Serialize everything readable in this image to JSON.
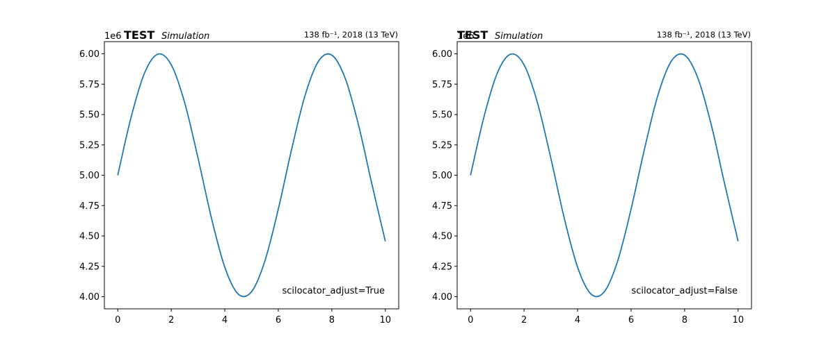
{
  "figure": {
    "background": "#ffffff"
  },
  "chart_data": [
    {
      "type": "line",
      "title": "",
      "header": {
        "label": "TEST",
        "sublabel": "Simulation",
        "lumi": "138 fb⁻¹, 2018 (13 TeV)"
      },
      "xlabel": "",
      "ylabel": "",
      "offset_text": "1e6",
      "xlim": [
        -0.5,
        10.5
      ],
      "ylim": [
        3900000,
        6100000
      ],
      "xticks": [
        0,
        2,
        4,
        6,
        8,
        10
      ],
      "xtick_labels": [
        "0",
        "2",
        "4",
        "6",
        "8",
        "10"
      ],
      "yticks": [
        4000000,
        4250000,
        4500000,
        4750000,
        5000000,
        5250000,
        5500000,
        5750000,
        6000000
      ],
      "ytick_labels": [
        "4.00",
        "4.25",
        "4.50",
        "4.75",
        "5.00",
        "5.25",
        "5.50",
        "5.75",
        "6.00"
      ],
      "grid": false,
      "annotation": "scilocator_adjust=True",
      "series": [
        {
          "color": "#1f77b4",
          "x": [
            0,
            0.5,
            1.0,
            1.5,
            2.0,
            2.5,
            3.0,
            3.5,
            4.0,
            4.5,
            5.0,
            5.5,
            6.0,
            6.5,
            7.0,
            7.5,
            8.0,
            8.5,
            9.0,
            9.5,
            10.0
          ],
          "y": [
            5000000,
            5479000,
            5841000,
            5997000,
            5909000,
            5598000,
            5141000,
            4649000,
            4243000,
            4022000,
            4041000,
            4295000,
            4721000,
            5215000,
            5657000,
            5938000,
            5989000,
            5798000,
            5412000,
            4925000,
            4456000
          ]
        }
      ]
    },
    {
      "type": "line",
      "title": "",
      "header": {
        "label": "TEST",
        "sublabel": "Simulation",
        "lumi": "138 fb⁻¹, 2018 (13 TeV)"
      },
      "xlabel": "",
      "ylabel": "",
      "offset_text": "1e6",
      "xlim": [
        -0.5,
        10.5
      ],
      "ylim": [
        3900000,
        6100000
      ],
      "xticks": [
        0,
        2,
        4,
        6,
        8,
        10
      ],
      "xtick_labels": [
        "0",
        "2",
        "4",
        "6",
        "8",
        "10"
      ],
      "yticks": [
        4000000,
        4250000,
        4500000,
        4750000,
        5000000,
        5250000,
        5500000,
        5750000,
        6000000
      ],
      "ytick_labels": [
        "4.00",
        "4.25",
        "4.50",
        "4.75",
        "5.00",
        "5.25",
        "5.50",
        "5.75",
        "6.00"
      ],
      "grid": false,
      "annotation": "scilocator_adjust=False",
      "series": [
        {
          "color": "#1f77b4",
          "x": [
            0,
            0.5,
            1.0,
            1.5,
            2.0,
            2.5,
            3.0,
            3.5,
            4.0,
            4.5,
            5.0,
            5.5,
            6.0,
            6.5,
            7.0,
            7.5,
            8.0,
            8.5,
            9.0,
            9.5,
            10.0
          ],
          "y": [
            5000000,
            5479000,
            5841000,
            5997000,
            5909000,
            5598000,
            5141000,
            4649000,
            4243000,
            4022000,
            4041000,
            4295000,
            4721000,
            5215000,
            5657000,
            5938000,
            5989000,
            5798000,
            5412000,
            4925000,
            4456000
          ]
        }
      ]
    }
  ]
}
